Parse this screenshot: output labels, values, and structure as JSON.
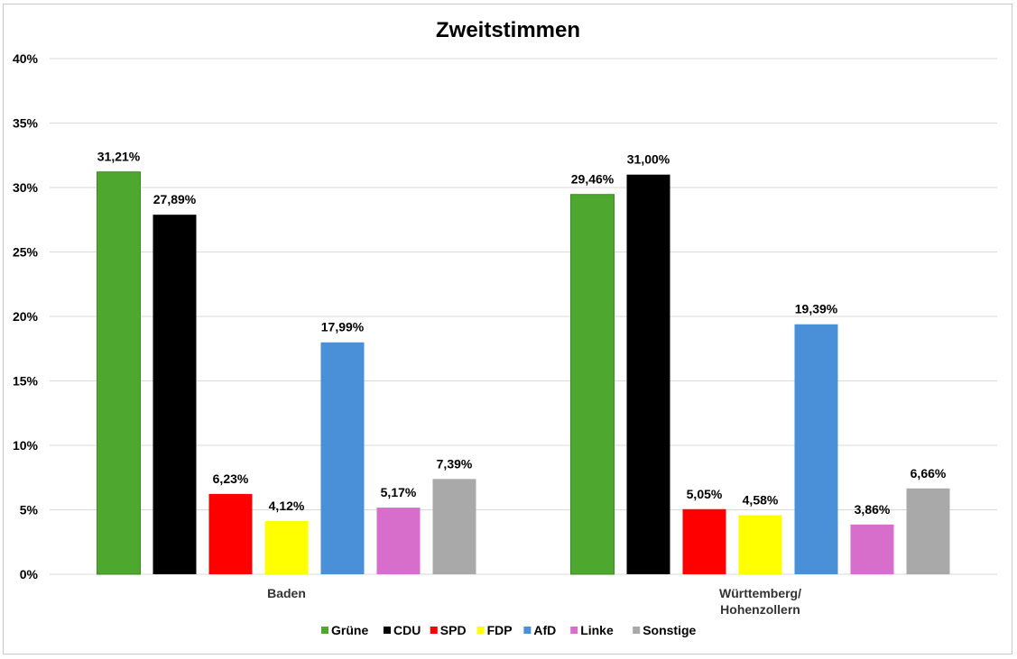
{
  "chart_data": {
    "type": "bar",
    "title": "Zweitstimmen",
    "xlabel": "",
    "ylabel": "",
    "ylim": [
      0,
      40
    ],
    "yticks": [
      0,
      5,
      10,
      15,
      20,
      25,
      30,
      35,
      40
    ],
    "ytick_labels": [
      "0%",
      "5%",
      "10%",
      "15%",
      "20%",
      "25%",
      "30%",
      "35%",
      "40%"
    ],
    "grid": true,
    "legend_position": "bottom",
    "categories": [
      {
        "lines": [
          "Baden"
        ]
      },
      {
        "lines": [
          "Württemberg/",
          "Hohenzollern"
        ]
      }
    ],
    "series": [
      {
        "name": "Grüne",
        "color": "#4ea72e",
        "values": [
          31.21,
          29.46
        ],
        "labels": [
          "31,21%",
          "29,46%"
        ]
      },
      {
        "name": "CDU",
        "color": "#000000",
        "values": [
          27.89,
          31.0
        ],
        "labels": [
          "27,89%",
          "31,00%"
        ]
      },
      {
        "name": "SPD",
        "color": "#ff0000",
        "values": [
          6.23,
          5.05
        ],
        "labels": [
          "6,23%",
          "5,05%"
        ]
      },
      {
        "name": "FDP",
        "color": "#ffff00",
        "values": [
          4.12,
          4.58
        ],
        "labels": [
          "4,12%",
          "4,58%"
        ]
      },
      {
        "name": "AfD",
        "color": "#4a90d9",
        "values": [
          17.99,
          19.39
        ],
        "labels": [
          "17,99%",
          "19,39%"
        ]
      },
      {
        "name": "Linke",
        "color": "#d86ecc",
        "values": [
          5.17,
          3.86
        ],
        "labels": [
          "5,17%",
          "3,86%"
        ]
      },
      {
        "name": "Sonstige",
        "color": "#a9a9a9",
        "values": [
          7.39,
          6.66
        ],
        "labels": [
          "7,39%",
          "6,66%"
        ]
      }
    ]
  }
}
